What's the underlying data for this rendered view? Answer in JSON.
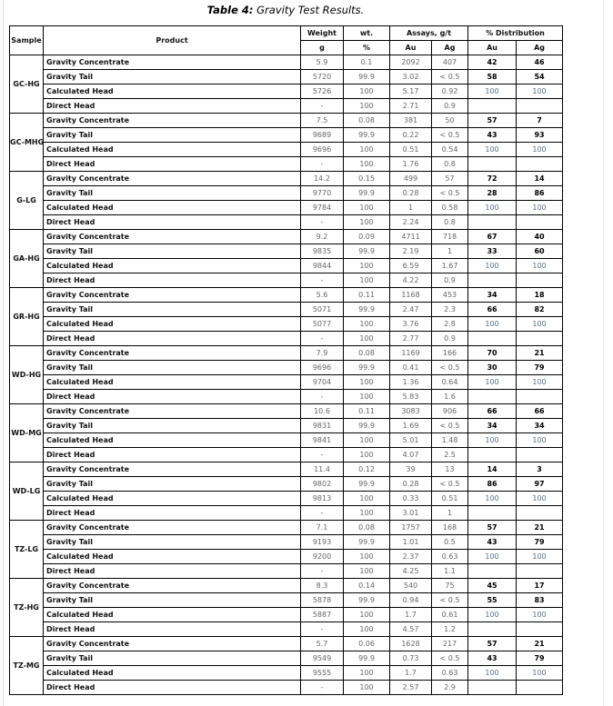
{
  "title": {
    "label": "Table 4:",
    "text": " Gravity Test Results."
  },
  "headers": {
    "sample": "Sample",
    "product": "Product",
    "weight": "Weight",
    "weight_unit": "g",
    "wt": "wt.",
    "wt_unit": "%",
    "assays": "Assays, g/t",
    "assay_au": "Au",
    "assay_ag": "Ag",
    "dist": "% Distribution",
    "dist_au": "Au",
    "dist_ag": "Ag"
  },
  "products": [
    "Gravity Concentrate",
    "Gravity Tail",
    "Calculated Head",
    "Direct Head"
  ],
  "samples": [
    {
      "name": "GC-HG",
      "rows": [
        [
          "5.9",
          "0.1",
          "2092",
          "407",
          "42",
          "46"
        ],
        [
          "5720",
          "99.9",
          "3.02",
          "< 0.5",
          "58",
          "54"
        ],
        [
          "5726",
          "100",
          "5.17",
          "0.92",
          "100",
          "100"
        ],
        [
          "-",
          "100",
          "2.71",
          "0.9",
          "",
          ""
        ]
      ]
    },
    {
      "name": "GC-MHG",
      "rows": [
        [
          "7.5",
          "0.08",
          "381",
          "50",
          "57",
          "7"
        ],
        [
          "9689",
          "99.9",
          "0.22",
          "< 0.5",
          "43",
          "93"
        ],
        [
          "9696",
          "100",
          "0.51",
          "0.54",
          "100",
          "100"
        ],
        [
          "-",
          "100",
          "1.76",
          "0.8",
          "",
          ""
        ]
      ]
    },
    {
      "name": "G-LG",
      "rows": [
        [
          "14.2",
          "0.15",
          "499",
          "57",
          "72",
          "14"
        ],
        [
          "9770",
          "99.9",
          "0.28",
          "< 0.5",
          "28",
          "86"
        ],
        [
          "9784",
          "100",
          "1",
          "0.58",
          "100",
          "100"
        ],
        [
          "-",
          "100",
          "2.24",
          "0.8",
          "",
          ""
        ]
      ]
    },
    {
      "name": "GA-HG",
      "rows": [
        [
          "9.2",
          "0.09",
          "4711",
          "718",
          "67",
          "40"
        ],
        [
          "9835",
          "99.9",
          "2.19",
          "1",
          "33",
          "60"
        ],
        [
          "9844",
          "100",
          "6.59",
          "1.67",
          "100",
          "100"
        ],
        [
          "-",
          "100",
          "4.22",
          "0.9",
          "",
          ""
        ]
      ]
    },
    {
      "name": "GR-HG",
      "rows": [
        [
          "5.6",
          "0.11",
          "1168",
          "453",
          "34",
          "18"
        ],
        [
          "5071",
          "99.9",
          "2.47",
          "2.3",
          "66",
          "82"
        ],
        [
          "5077",
          "100",
          "3.76",
          "2.8",
          "100",
          "100"
        ],
        [
          "-",
          "100",
          "2.77",
          "0.9",
          "",
          ""
        ]
      ]
    },
    {
      "name": "WD-HG",
      "rows": [
        [
          "7.9",
          "0.08",
          "1169",
          "166",
          "70",
          "21"
        ],
        [
          "9696",
          "99.9",
          "0.41",
          "< 0.5",
          "30",
          "79"
        ],
        [
          "9704",
          "100",
          "1.36",
          "0.64",
          "100",
          "100"
        ],
        [
          "-",
          "100",
          "5.83",
          "1.6",
          "",
          ""
        ]
      ]
    },
    {
      "name": "WD-MG",
      "rows": [
        [
          "10.6",
          "0.11",
          "3083",
          "906",
          "66",
          "66"
        ],
        [
          "9831",
          "99.9",
          "1.69",
          "< 0.5",
          "34",
          "34"
        ],
        [
          "9841",
          "100",
          "5.01",
          "1.48",
          "100",
          "100"
        ],
        [
          "-",
          "100",
          "4.07",
          "2.5",
          "",
          ""
        ]
      ]
    },
    {
      "name": "WD-LG",
      "rows": [
        [
          "11.4",
          "0.12",
          "39",
          "13",
          "14",
          "3"
        ],
        [
          "9802",
          "99.9",
          "0.28",
          "< 0.5",
          "86",
          "97"
        ],
        [
          "9813",
          "100",
          "0.33",
          "0.51",
          "100",
          "100"
        ],
        [
          "-",
          "100",
          "3.01",
          "1",
          "",
          ""
        ]
      ]
    },
    {
      "name": "TZ-LG",
      "rows": [
        [
          "7.1",
          "0.08",
          "1757",
          "168",
          "57",
          "21"
        ],
        [
          "9193",
          "99.9",
          "1.01",
          "0.5",
          "43",
          "79"
        ],
        [
          "9200",
          "100",
          "2.37",
          "0.63",
          "100",
          "100"
        ],
        [
          "-",
          "100",
          "4.25",
          "1.1",
          "",
          ""
        ]
      ]
    },
    {
      "name": "TZ-HG",
      "rows": [
        [
          "8.3",
          "0.14",
          "540",
          "75",
          "45",
          "17"
        ],
        [
          "5878",
          "99.9",
          "0.94",
          "< 0.5",
          "55",
          "83"
        ],
        [
          "5887",
          "100",
          "1.7",
          "0.61",
          "100",
          "100"
        ],
        [
          "-",
          "100",
          "4.57",
          "1.2",
          "",
          ""
        ]
      ]
    },
    {
      "name": "TZ-MG",
      "rows": [
        [
          "5.7",
          "0.06",
          "1628",
          "217",
          "57",
          "21"
        ],
        [
          "9549",
          "99.9",
          "0.73",
          "< 0.5",
          "43",
          "79"
        ],
        [
          "9555",
          "100",
          "1.7",
          "0.63",
          "100",
          "100"
        ],
        [
          "-",
          "100",
          "2.57",
          "2.9",
          "",
          ""
        ]
      ]
    }
  ]
}
